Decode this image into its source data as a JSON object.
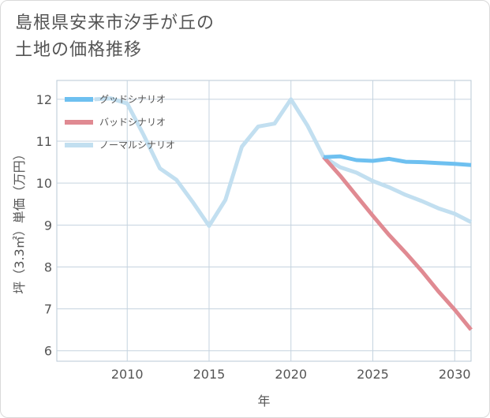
{
  "chart_data": {
    "type": "line",
    "title": "島根県安来市汐手が丘の土地の価格推移",
    "title_lines": [
      "島根県安来市汐手が丘の",
      "土地の価格推移"
    ],
    "xlabel": "年",
    "ylabel": "坪（3.3㎡）単価（万円）",
    "xlim": [
      2005.7,
      2031
    ],
    "ylim": [
      5.75,
      12.45
    ],
    "x_ticks": [
      2010,
      2015,
      2020,
      2025,
      2030
    ],
    "y_ticks": [
      6,
      7,
      8,
      9,
      10,
      11,
      12
    ],
    "grid": true,
    "legend_position": "top-left",
    "series": [
      {
        "name": "グッドシナリオ",
        "color": "#6ec0f0",
        "x": [
          2022,
          2023,
          2024,
          2025,
          2026,
          2027,
          2028,
          2029,
          2030,
          2031
        ],
        "y": [
          10.62,
          10.64,
          10.55,
          10.53,
          10.58,
          10.51,
          10.5,
          10.48,
          10.46,
          10.43
        ]
      },
      {
        "name": "バッドシナリオ",
        "color": "#e08a92",
        "x": [
          2022,
          2023,
          2024,
          2025,
          2026,
          2027,
          2028,
          2029,
          2030,
          2031
        ],
        "y": [
          10.62,
          10.18,
          9.7,
          9.22,
          8.76,
          8.34,
          7.9,
          7.42,
          6.98,
          6.5
        ]
      },
      {
        "name": "ノーマルシナリオ",
        "color": "#c2dff0",
        "x": [
          2008,
          2009,
          2010,
          2011,
          2012,
          2013,
          2014,
          2015,
          2016,
          2017,
          2018,
          2019,
          2020,
          2021,
          2022,
          2023,
          2024,
          2025,
          2026,
          2027,
          2028,
          2029,
          2030,
          2031
        ],
        "y": [
          12.0,
          12.02,
          11.9,
          11.15,
          10.35,
          10.08,
          9.55,
          8.98,
          9.6,
          10.87,
          11.35,
          11.42,
          12.0,
          11.38,
          10.62,
          10.38,
          10.25,
          10.05,
          9.9,
          9.72,
          9.57,
          9.4,
          9.27,
          9.07
        ]
      }
    ]
  }
}
